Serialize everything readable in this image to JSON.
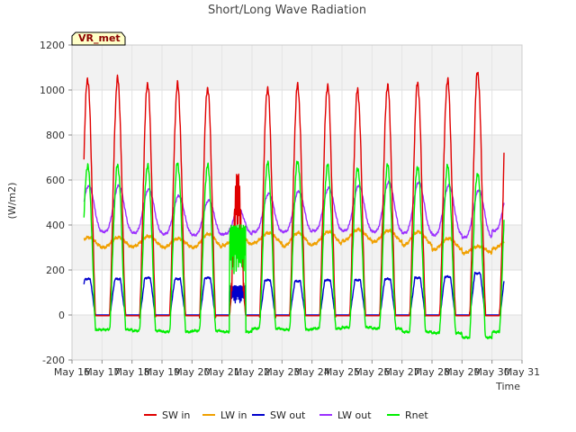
{
  "chart_data": {
    "type": "line",
    "title": "Short/Long Wave Radiation",
    "xlabel": "Time",
    "ylabel": "(W/m2)",
    "badge": "VR_met",
    "ylim": [
      -200,
      1200
    ],
    "yticks": [
      -200,
      0,
      200,
      400,
      600,
      800,
      1000,
      1200
    ],
    "xlim": [
      16,
      31
    ],
    "xticks": [
      {
        "value": 16,
        "label": "May 16"
      },
      {
        "value": 17,
        "label": "May 17"
      },
      {
        "value": 18,
        "label": "May 18"
      },
      {
        "value": 19,
        "label": "May 19"
      },
      {
        "value": 20,
        "label": "May 20"
      },
      {
        "value": 21,
        "label": "May 21"
      },
      {
        "value": 22,
        "label": "May 22"
      },
      {
        "value": 23,
        "label": "May 23"
      },
      {
        "value": 24,
        "label": "May 24"
      },
      {
        "value": 25,
        "label": "May 25"
      },
      {
        "value": 26,
        "label": "May 26"
      },
      {
        "value": 27,
        "label": "May 27"
      },
      {
        "value": 28,
        "label": "May 28"
      },
      {
        "value": 29,
        "label": "May 29"
      },
      {
        "value": 30,
        "label": "May 30"
      },
      {
        "value": 31,
        "label": "May 31"
      }
    ],
    "grid": true,
    "legend_position": "bottom",
    "x_start": 16.4,
    "x_end": 30.4,
    "days": [
      17,
      18,
      19,
      20,
      21,
      22,
      23,
      24,
      25,
      26,
      27,
      28,
      29,
      30
    ],
    "series": [
      {
        "name": "SW in",
        "color": "#e00000",
        "daily_peak": [
          1050,
          1030,
          1025,
          1010,
          650,
          1010,
          1020,
          1020,
          1000,
          1020,
          1030,
          1045,
          1080,
          1055
        ]
      },
      {
        "name": "LW in",
        "color": "#f0a000",
        "daily_peak": [
          345,
          350,
          340,
          360,
          360,
          365,
          365,
          370,
          380,
          375,
          370,
          340,
          305,
          335
        ],
        "daily_min": [
          300,
          305,
          300,
          300,
          310,
          320,
          305,
          315,
          330,
          325,
          310,
          290,
          275,
          295
        ]
      },
      {
        "name": "SW out",
        "color": "#0000cc",
        "daily_peak": [
          160,
          165,
          160,
          165,
          130,
          155,
          150,
          155,
          155,
          160,
          165,
          170,
          185,
          180
        ]
      },
      {
        "name": "LW out",
        "color": "#9b30ff",
        "daily_peak": [
          575,
          560,
          530,
          510,
          470,
          540,
          550,
          565,
          575,
          590,
          590,
          575,
          555,
          565
        ],
        "daily_min": [
          370,
          365,
          360,
          355,
          360,
          370,
          370,
          375,
          375,
          370,
          365,
          355,
          345,
          375
        ]
      },
      {
        "name": "Rnet",
        "color": "#00ee00",
        "daily_peak": [
          665,
          665,
          675,
          665,
          400,
          675,
          685,
          665,
          655,
          665,
          660,
          660,
          630,
          650
        ],
        "daily_min": [
          -65,
          -70,
          -75,
          -70,
          -75,
          -60,
          -65,
          -60,
          -55,
          -60,
          -75,
          -80,
          -100,
          -75
        ]
      }
    ]
  }
}
